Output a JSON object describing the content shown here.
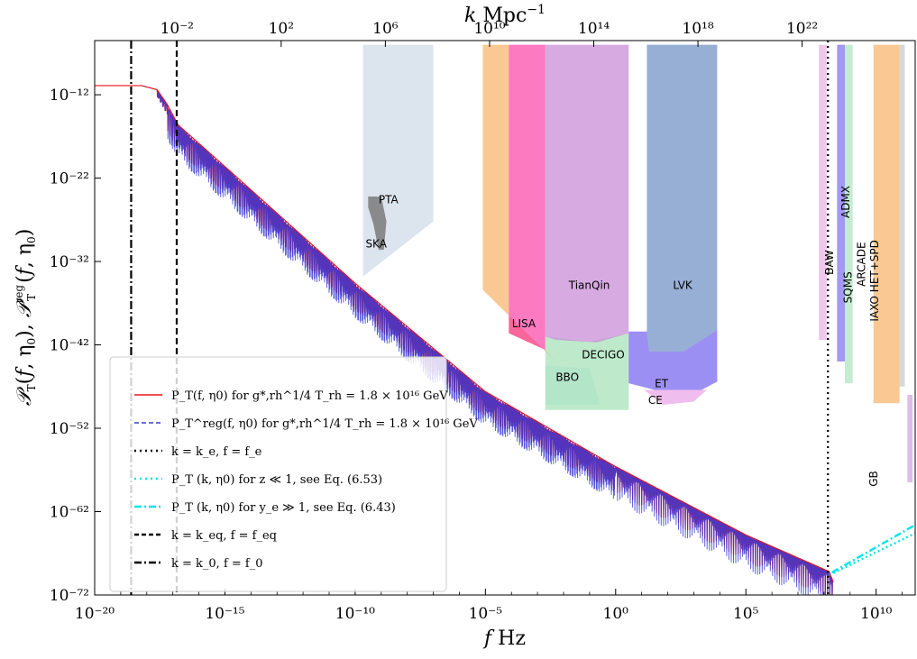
{
  "chart_data": {
    "type": "line",
    "title": "",
    "xlabel": "f Hz",
    "ylabel": "P_T(f, η0), P_T^reg(f, η0)",
    "top_xlabel": "k Mpc⁻¹",
    "xscale": "log",
    "yscale": "log",
    "xlim": [
      -20,
      11.5
    ],
    "ylim": [
      -72,
      -5.5
    ],
    "x_ticks": [
      {
        "exp": -20,
        "label": "10⁻²⁰"
      },
      {
        "exp": -15,
        "label": "10⁻¹⁵"
      },
      {
        "exp": -10,
        "label": "10⁻¹⁰"
      },
      {
        "exp": -5,
        "label": "10⁻⁵"
      },
      {
        "exp": 0,
        "label": "10⁰"
      },
      {
        "exp": 5,
        "label": "10⁵"
      },
      {
        "exp": 10,
        "label": "10¹⁰"
      }
    ],
    "y_ticks": [
      {
        "exp": -12,
        "label": "10⁻¹²"
      },
      {
        "exp": -22,
        "label": "10⁻²²"
      },
      {
        "exp": -32,
        "label": "10⁻³²"
      },
      {
        "exp": -42,
        "label": "10⁻⁴²"
      },
      {
        "exp": -52,
        "label": "10⁻⁵²"
      },
      {
        "exp": -62,
        "label": "10⁻⁶²"
      },
      {
        "exp": -72,
        "label": "10⁻⁷²"
      }
    ],
    "top_ticks": [
      {
        "f_exp": -16.84,
        "label": "10⁻²"
      },
      {
        "f_exp": -12.84,
        "label": "10²"
      },
      {
        "f_exp": -8.84,
        "label": "10⁶"
      },
      {
        "f_exp": -4.84,
        "label": "10¹⁰"
      },
      {
        "f_exp": -0.84,
        "label": "10¹⁴"
      },
      {
        "f_exp": 3.16,
        "label": "10¹⁸"
      },
      {
        "f_exp": 7.16,
        "label": "10²²"
      }
    ],
    "series": [
      {
        "key": "red",
        "color": "#e8141a",
        "points": [
          [
            -20,
            -10.9
          ],
          [
            -18.2,
            -10.9
          ],
          [
            -17.6,
            -11.4
          ],
          [
            -17.2,
            -13.2
          ],
          [
            -16.8,
            -15.6
          ],
          [
            -15,
            -20.6
          ],
          [
            -10,
            -34.6
          ],
          [
            -5,
            -47.6
          ],
          [
            0,
            -56.6
          ],
          [
            5,
            -64.8
          ],
          [
            8.2,
            -69.2
          ],
          [
            8.35,
            -70.4
          ]
        ]
      },
      {
        "key": "blue",
        "color": "#3a3ad8",
        "points": [
          [
            -20,
            -10.9
          ],
          [
            -18.2,
            -10.9
          ],
          [
            -17.6,
            -11.4
          ],
          [
            -17.2,
            -13.2
          ],
          [
            -16.8,
            -15.6
          ],
          [
            -15,
            -20.6
          ],
          [
            -10,
            -34.6
          ],
          [
            -5,
            -47.6
          ],
          [
            0,
            -56.6
          ],
          [
            5,
            -64.8
          ],
          [
            8.2,
            -69.2
          ],
          [
            8.35,
            -70.4
          ]
        ]
      },
      {
        "key": "cyan_dotted",
        "color": "#00e5ee",
        "points": [
          [
            8.2,
            -69.6
          ],
          [
            11.5,
            -64.6
          ]
        ]
      },
      {
        "key": "cyan_dashdot",
        "color": "#00e5ee",
        "points": [
          [
            8.3,
            -69.3
          ],
          [
            11.5,
            -63.6
          ]
        ]
      }
    ],
    "vlines": [
      {
        "key": "k_e",
        "x": 8.15,
        "style": "dotted"
      },
      {
        "key": "k_eq",
        "x": -16.85,
        "style": "dashed"
      },
      {
        "key": "k_0",
        "x": -18.6,
        "style": "dashdot"
      }
    ],
    "detectors": [
      {
        "name": "SKA",
        "color": "#b9c9de",
        "alpha": 0.5,
        "poly": [
          [
            -9.7,
            -6
          ],
          [
            -7,
            -6
          ],
          [
            -7,
            -27.2
          ],
          [
            -9.7,
            -33.8
          ]
        ],
        "label_at": [
          -9.6,
          -30.3
        ]
      },
      {
        "name": "PTA",
        "color": "#7a7a7a",
        "alpha": 0.85,
        "poly": [
          [
            -9.5,
            -24.2
          ],
          [
            -9.0,
            -24.2
          ],
          [
            -8.8,
            -27.2
          ],
          [
            -8.9,
            -30.6
          ],
          [
            -9.1,
            -30.6
          ],
          [
            -9.3,
            -27.5
          ],
          [
            -9.5,
            -25.5
          ]
        ],
        "label_at": [
          -9.1,
          -25.0
        ]
      },
      {
        "name": "LISA",
        "color": "#f7a34a",
        "alpha": 0.6,
        "poly": [
          [
            -5.1,
            -6
          ],
          [
            -4.1,
            -6
          ],
          [
            -4.1,
            -40.6
          ],
          [
            -2.7,
            -42.6
          ],
          [
            -2.3,
            -44.0
          ],
          [
            -5.1,
            -35.4
          ]
        ],
        "label_at": [
          -3.98,
          -39.9
        ]
      },
      {
        "name": "TianQin",
        "color": "#f9329e",
        "alpha": 0.65,
        "poly": [
          [
            -4.1,
            -6
          ],
          [
            -2.7,
            -6
          ],
          [
            -2.7,
            -42.6
          ],
          [
            -4.1,
            -40.6
          ]
        ],
        "label_at": [
          -1.8,
          -35.3
        ]
      },
      {
        "name": "DECIGO",
        "color": "#88d8a0",
        "alpha": 0.55,
        "poly": [
          [
            -2.7,
            -41.0
          ],
          [
            -1.0,
            -41.6
          ],
          [
            0.5,
            -40.6
          ],
          [
            0.5,
            -49.8
          ],
          [
            -2.7,
            -49.8
          ]
        ],
        "label_at": [
          -1.3,
          -43.6
        ]
      },
      {
        "name": "BBO",
        "color": "#a8e0c8",
        "alpha": 0.5,
        "poly": [
          [
            -2.7,
            -44.5
          ],
          [
            -1.0,
            -44.8
          ],
          [
            -0.6,
            -49.2
          ],
          [
            -2.7,
            -49.2
          ]
        ],
        "label_at": [
          -2.3,
          -46.3
        ]
      },
      {
        "name": "TianQin",
        "color": "#c98fd8",
        "alpha": 0.75,
        "poly": [
          [
            -2.7,
            -6
          ],
          [
            0.5,
            -6
          ],
          [
            0.5,
            -40.6
          ],
          [
            -0.7,
            -41.7
          ],
          [
            -2.3,
            -41.4
          ],
          [
            -2.7,
            -41.0
          ]
        ],
        "label_at": null
      },
      {
        "name": "LVK",
        "color": "#8ca6cf",
        "alpha": 0.9,
        "poly": [
          [
            1.2,
            -6
          ],
          [
            3.9,
            -6
          ],
          [
            3.9,
            -40.2
          ],
          [
            2.6,
            -42.8
          ],
          [
            1.3,
            -42.8
          ],
          [
            1.2,
            -40.4
          ]
        ],
        "label_at": [
          2.2,
          -35.3
        ]
      },
      {
        "name": "ET",
        "color": "#7b6af0",
        "alpha": 0.75,
        "poly": [
          [
            0.5,
            -40.4
          ],
          [
            1.2,
            -40.4
          ],
          [
            1.3,
            -42.8
          ],
          [
            2.6,
            -42.8
          ],
          [
            3.9,
            -40.2
          ],
          [
            3.9,
            -46.4
          ],
          [
            3.3,
            -47.4
          ],
          [
            1.5,
            -47.4
          ],
          [
            0.5,
            -46.6
          ]
        ],
        "label_at": [
          1.5,
          -47.1
        ]
      },
      {
        "name": "CE",
        "color": "#e9a8e8",
        "alpha": 0.75,
        "poly": [
          [
            1.1,
            -47.4
          ],
          [
            3.5,
            -47.4
          ],
          [
            3.0,
            -48.8
          ],
          [
            1.8,
            -49.2
          ]
        ],
        "label_at": [
          1.25,
          -49.1
        ]
      },
      {
        "name": "BAW",
        "color": "#e7b0e6",
        "alpha": 0.7,
        "poly": [
          [
            7.8,
            -6
          ],
          [
            8.1,
            -6
          ],
          [
            8.1,
            -41.4
          ],
          [
            7.8,
            -41.4
          ]
        ],
        "label_at": [
          8.35,
          -33.6
        ]
      },
      {
        "name": "ADMX",
        "color": "#8476ee",
        "alpha": 0.75,
        "poly": [
          [
            8.5,
            -6
          ],
          [
            8.8,
            -6
          ],
          [
            8.8,
            -44.0
          ],
          [
            8.5,
            -44.0
          ]
        ],
        "label_at": [
          8.98,
          -26.8
        ]
      },
      {
        "name": "SQMS",
        "color": "#9ee0b0",
        "alpha": 0.6,
        "poly": [
          [
            8.8,
            -6
          ],
          [
            9.1,
            -6
          ],
          [
            9.1,
            -46.6
          ],
          [
            8.8,
            -46.6
          ]
        ],
        "label_at": [
          9.06,
          -37.0
        ]
      },
      {
        "name": "ARCADE",
        "color": "#f7a34a",
        "alpha": 0.6,
        "poly": [
          [
            9.9,
            -6
          ],
          [
            10.9,
            -6
          ],
          [
            10.9,
            -49.0
          ],
          [
            9.9,
            -49.0
          ]
        ],
        "label_at": [
          9.58,
          -35.0
        ]
      },
      {
        "name": "IAXO HET+SPD",
        "color": "#c8c8c8",
        "alpha": 0.7,
        "poly": [
          [
            10.9,
            -6
          ],
          [
            11.1,
            -6
          ],
          [
            11.1,
            -47.0
          ],
          [
            10.9,
            -47.0
          ]
        ],
        "label_at": [
          10.08,
          -39.2
        ]
      },
      {
        "name": "GB",
        "color": "#c98fd8",
        "alpha": 0.6,
        "poly": [
          [
            11.2,
            -48.0
          ],
          [
            11.4,
            -48.0
          ],
          [
            11.4,
            -58.5
          ],
          [
            11.2,
            -58.5
          ]
        ],
        "label_at": [
          10.05,
          -59.0
        ]
      }
    ],
    "legend": {
      "placement": "lower-left",
      "entries": [
        {
          "text": "P_T(f, η0) for g*,rh^1/4 T_rh = 1.8 × 10¹⁶ GeV",
          "color": "#e8141a",
          "style": "solid"
        },
        {
          "text": "P_T^reg(f, η0) for g*,rh^1/4 T_rh = 1.8 × 10¹⁶ GeV",
          "color": "#3a3ad8",
          "style": "dashed"
        },
        {
          "text": "k = k_e, f = f_e",
          "color": "#000000",
          "style": "dotted"
        },
        {
          "text": "P_T (k, η0) for z ≪ 1, see Eq. (6.53)",
          "color": "#00e5ee",
          "style": "dotted"
        },
        {
          "text": "P_T (k, η0) for y_e ≫ 1, see Eq. (6.43)",
          "color": "#00e5ee",
          "style": "dashdot"
        },
        {
          "text": "k = k_eq, f = f_eq",
          "color": "#000000",
          "style": "dashed"
        },
        {
          "text": "k = k_0, f = f_0",
          "color": "#000000",
          "style": "dashdot"
        }
      ]
    }
  }
}
